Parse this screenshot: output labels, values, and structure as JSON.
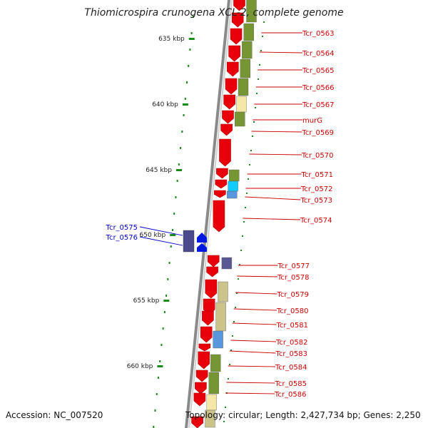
{
  "title": "Thiomicrospira crunogena XCL-2, complete genome",
  "footer": {
    "accession": "Accession: NC_007520",
    "summary": "Topology: circular; Length: 2,427,734 bp; Genes: 2,250"
  },
  "colors": {
    "backbone": "#8a8a8a",
    "tick": "#1a8a1a",
    "gene_forward": "#e8000b",
    "label_red": "#cc0000",
    "label_blue": "#0000cc",
    "cog_olive": "#6b8e23",
    "cog_khaki": "#c8be82",
    "cog_pale": "#f4e6a0",
    "cog_cyan": "#00c8ff",
    "cog_steel": "#4a8fd8",
    "cog_slate": "#4a4a8c",
    "gene_blue": "#0018e0"
  },
  "scale_labels": [
    "635 kbp",
    "640 kbp",
    "645 kbp",
    "650 kbp",
    "655 kbp",
    "660 kbp"
  ],
  "scale_kbp": [
    635,
    640,
    645,
    650,
    655,
    660
  ],
  "gene_labels": [
    {
      "name": "Tcr_0563",
      "strand": "+"
    },
    {
      "name": "Tcr_0564",
      "strand": "+"
    },
    {
      "name": "Tcr_0565",
      "strand": "+"
    },
    {
      "name": "Tcr_0566",
      "strand": "+"
    },
    {
      "name": "Tcr_0567",
      "strand": "+"
    },
    {
      "name": "murG",
      "strand": "+"
    },
    {
      "name": "Tcr_0569",
      "strand": "+"
    },
    {
      "name": "Tcr_0570",
      "strand": "+"
    },
    {
      "name": "Tcr_0571",
      "strand": "+"
    },
    {
      "name": "Tcr_0572",
      "strand": "+"
    },
    {
      "name": "Tcr_0573",
      "strand": "+"
    },
    {
      "name": "Tcr_0574",
      "strand": "+"
    },
    {
      "name": "Tcr_0575",
      "strand": "-"
    },
    {
      "name": "Tcr_0576",
      "strand": "-"
    },
    {
      "name": "Tcr_0577",
      "strand": "+"
    },
    {
      "name": "Tcr_0578",
      "strand": "+"
    },
    {
      "name": "Tcr_0579",
      "strand": "+"
    },
    {
      "name": "Tcr_0580",
      "strand": "+"
    },
    {
      "name": "Tcr_0581",
      "strand": "+"
    },
    {
      "name": "Tcr_0582",
      "strand": "+"
    },
    {
      "name": "Tcr_0583",
      "strand": "+"
    },
    {
      "name": "Tcr_0584",
      "strand": "+"
    },
    {
      "name": "Tcr_0585",
      "strand": "+"
    },
    {
      "name": "Tcr_0586",
      "strand": "+"
    }
  ]
}
